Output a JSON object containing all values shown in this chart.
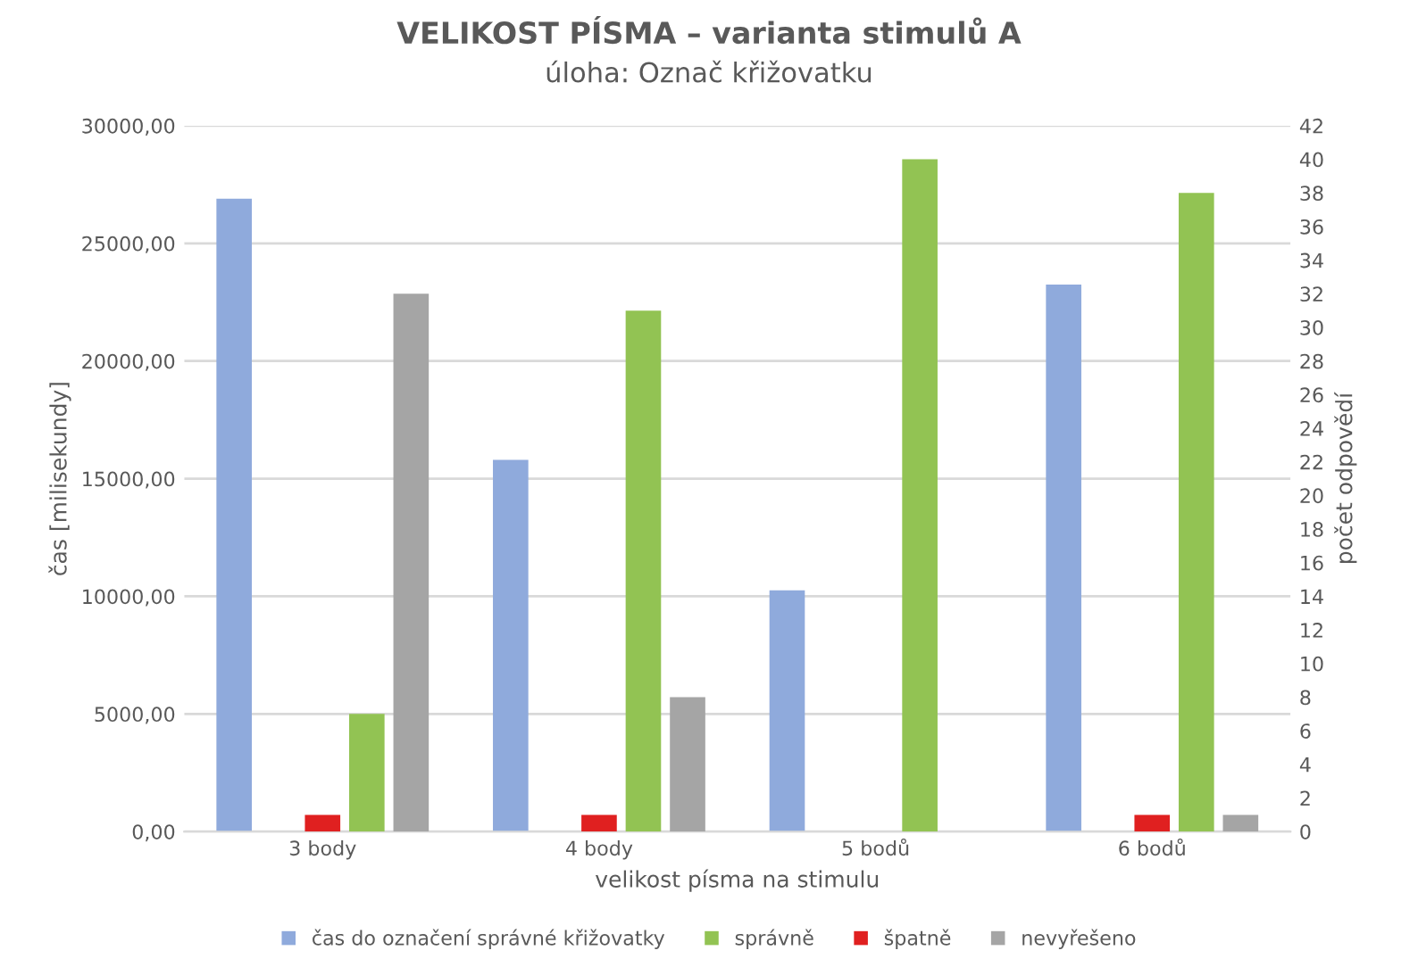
{
  "chart_data": {
    "type": "bar",
    "title": "VELIKOST PÍSMA – varianta stimulů A",
    "subtitle": "úloha: Označ křižovatku",
    "xlabel": "velikost písma na stimulu",
    "ylabel": "čas [milisekundy]",
    "y2label": "počet odpovědí",
    "categories": [
      "3 body",
      "4 body",
      "5 bodů",
      "6 bodů"
    ],
    "series": [
      {
        "name": "čas do označení správné křižovatky",
        "color": "#8faadc",
        "values": [
          26900,
          15800,
          10250,
          23250
        ]
      },
      {
        "name": "správně",
        "color": "#92c353",
        "values": [
          7,
          31,
          40,
          38
        ],
        "axis": "y2"
      },
      {
        "name": "špatně",
        "color": "#e02020",
        "values": [
          1,
          1,
          0,
          1
        ],
        "axis": "y2"
      },
      {
        "name": "nevyřešeno",
        "color": "#a5a5a5",
        "values": [
          32,
          8,
          0,
          1
        ],
        "axis": "y2"
      }
    ],
    "ylim": [
      0,
      30000
    ],
    "yticks": [
      {
        "value": 0,
        "label": "0,00"
      },
      {
        "value": 5000,
        "label": "5000,00"
      },
      {
        "value": 10000,
        "label": "10000,00"
      },
      {
        "value": 15000,
        "label": "15000,00"
      },
      {
        "value": 20000,
        "label": "20000,00"
      },
      {
        "value": 25000,
        "label": "25000,00"
      },
      {
        "value": 30000,
        "label": "30000,00"
      }
    ],
    "y2lim": [
      0,
      42
    ],
    "y2ticks": [
      0,
      2,
      4,
      6,
      8,
      10,
      12,
      14,
      16,
      18,
      20,
      22,
      24,
      26,
      28,
      30,
      32,
      34,
      36,
      38,
      40,
      42
    ],
    "grid": "y",
    "legend": "bottom"
  }
}
